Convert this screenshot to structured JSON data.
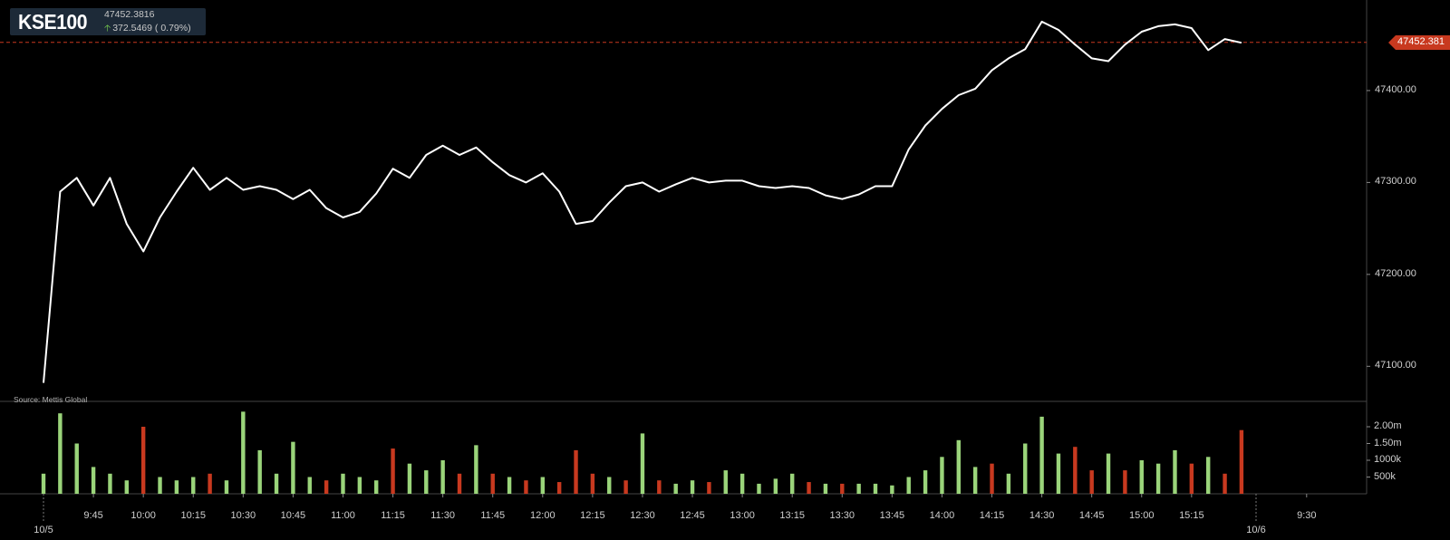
{
  "header": {
    "symbol": "KSE100",
    "last": "47452.3816",
    "change": "372.5469 ( 0.79%)"
  },
  "source_note": "Source: Mettis Global",
  "last_price_label": "47452.381",
  "colors": {
    "price_line": "#ffffff",
    "up_volume": "#9ad47a",
    "down_volume": "#c8391f",
    "last_price_tag": "#c8391f",
    "grid": "#444444"
  },
  "chart_data": [
    {
      "type": "line",
      "title": "",
      "xlabel": "",
      "ylabel": "",
      "series": [
        {
          "name": "KSE100"
        }
      ],
      "ylim": [
        47050,
        47500
      ],
      "yticks": [
        "47100.00",
        "47200.00",
        "47300.00",
        "47400.00"
      ],
      "xtick_labels": [
        "9:45",
        "10:00",
        "10:15",
        "10:30",
        "10:45",
        "11:00",
        "11:15",
        "11:30",
        "11:45",
        "12:00",
        "12:15",
        "12:30",
        "12:45",
        "13:00",
        "13:15",
        "13:30",
        "13:45",
        "14:00",
        "14:15",
        "14:30",
        "14:45",
        "15:00",
        "15:15",
        "9:30"
      ],
      "date_labels": [
        "10/5",
        "10/6"
      ],
      "last_value": 47452.3816,
      "x": [
        "9:30",
        "9:35",
        "9:40",
        "9:45",
        "9:50",
        "9:55",
        "10:00",
        "10:05",
        "10:10",
        "10:15",
        "10:20",
        "10:25",
        "10:30",
        "10:35",
        "10:40",
        "10:45",
        "10:50",
        "10:55",
        "11:00",
        "11:05",
        "11:10",
        "11:15",
        "11:20",
        "11:25",
        "11:30",
        "11:35",
        "11:40",
        "11:45",
        "11:50",
        "11:55",
        "12:00",
        "12:05",
        "12:10",
        "12:15",
        "12:20",
        "12:25",
        "12:30",
        "12:35",
        "12:40",
        "12:45",
        "12:50",
        "12:55",
        "13:00",
        "13:05",
        "13:10",
        "13:15",
        "13:20",
        "13:25",
        "13:30",
        "13:35",
        "13:40",
        "13:45",
        "13:50",
        "13:55",
        "14:00",
        "14:05",
        "14:10",
        "14:15",
        "14:20",
        "14:25",
        "14:30",
        "14:35",
        "14:40",
        "14:45",
        "14:50",
        "14:55",
        "15:00",
        "15:05",
        "15:10",
        "15:15",
        "15:20",
        "15:25",
        "15:30"
      ],
      "y": [
        47082,
        47290,
        47305,
        47275,
        47305,
        47255,
        47225,
        47262,
        47290,
        47316,
        47292,
        47305,
        47292,
        47296,
        47292,
        47282,
        47292,
        47272,
        47262,
        47268,
        47288,
        47315,
        47305,
        47330,
        47340,
        47330,
        47338,
        47322,
        47308,
        47300,
        47310,
        47290,
        47255,
        47258,
        47278,
        47296,
        47300,
        47290,
        47298,
        47305,
        47300,
        47302,
        47302,
        47296,
        47294,
        47296,
        47294,
        47286,
        47282,
        47287,
        47296,
        47296,
        47336,
        47362,
        47380,
        47395,
        47402,
        47422,
        47435,
        47445,
        47475,
        47466,
        47450,
        47435,
        47432,
        47450,
        47464,
        47470,
        47472,
        47468,
        47444,
        47456,
        47452
      ]
    },
    {
      "type": "bar",
      "title": "",
      "series": [
        {
          "name": "Volume"
        }
      ],
      "ylim": [
        0,
        2500000
      ],
      "yticks": [
        "500k",
        "1000k",
        "1.50m",
        "2.00m"
      ],
      "x": [
        "9:30",
        "9:35",
        "9:40",
        "9:45",
        "9:50",
        "9:55",
        "10:00",
        "10:05",
        "10:10",
        "10:15",
        "10:20",
        "10:25",
        "10:30",
        "10:35",
        "10:40",
        "10:45",
        "10:50",
        "10:55",
        "11:00",
        "11:05",
        "11:10",
        "11:15",
        "11:20",
        "11:25",
        "11:30",
        "11:35",
        "11:40",
        "11:45",
        "11:50",
        "11:55",
        "12:00",
        "12:05",
        "12:10",
        "12:15",
        "12:20",
        "12:25",
        "12:30",
        "12:35",
        "12:40",
        "12:45",
        "12:50",
        "12:55",
        "13:00",
        "13:05",
        "13:10",
        "13:15",
        "13:20",
        "13:25",
        "13:30",
        "13:35",
        "13:40",
        "13:45",
        "13:50",
        "13:55",
        "14:00",
        "14:05",
        "14:10",
        "14:15",
        "14:20",
        "14:25",
        "14:30",
        "14:35",
        "14:40",
        "14:45",
        "14:50",
        "14:55",
        "15:00",
        "15:05",
        "15:10",
        "15:15",
        "15:20",
        "15:25",
        "15:30"
      ],
      "values": [
        600000,
        2400000,
        1500000,
        800000,
        600000,
        400000,
        2000000,
        500000,
        400000,
        500000,
        600000,
        400000,
        2450000,
        1300000,
        600000,
        1550000,
        500000,
        400000,
        600000,
        500000,
        400000,
        1350000,
        900000,
        700000,
        1000000,
        600000,
        1450000,
        600000,
        500000,
        400000,
        500000,
        350000,
        1300000,
        600000,
        500000,
        400000,
        1800000,
        400000,
        300000,
        400000,
        350000,
        700000,
        600000,
        300000,
        450000,
        600000,
        350000,
        300000,
        300000,
        300000,
        300000,
        250000,
        500000,
        700000,
        1100000,
        1600000,
        800000,
        900000,
        600000,
        1500000,
        2300000,
        1200000,
        1400000,
        700000,
        1200000,
        700000,
        1000000,
        900000,
        1300000,
        900000,
        1100000,
        600000,
        1900000
      ],
      "up": [
        true,
        true,
        true,
        true,
        true,
        true,
        false,
        true,
        true,
        true,
        false,
        true,
        true,
        true,
        true,
        true,
        true,
        false,
        true,
        true,
        true,
        false,
        true,
        true,
        true,
        false,
        true,
        false,
        true,
        false,
        true,
        false,
        false,
        false,
        true,
        false,
        true,
        false,
        true,
        true,
        false,
        true,
        true,
        true,
        true,
        true,
        false,
        true,
        false,
        true,
        true,
        true,
        true,
        true,
        true,
        true,
        true,
        false,
        true,
        true,
        true,
        true,
        false,
        false,
        true,
        false,
        true,
        true,
        true,
        false,
        true,
        false,
        false
      ]
    }
  ]
}
